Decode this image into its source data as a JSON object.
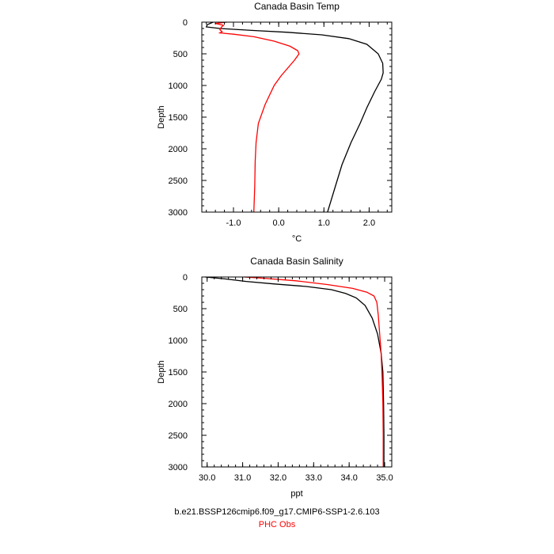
{
  "chart_data": [
    {
      "type": "line",
      "title": "Canada Basin Temp",
      "xlabel": "°C",
      "ylabel": "Depth",
      "xlim": [
        -1.7,
        2.5
      ],
      "ylim": [
        3000,
        0
      ],
      "x_ticks": [
        "-1.0",
        "0.0",
        "1.0",
        "2.0"
      ],
      "x_tick_values": [
        -1.0,
        0.0,
        1.0,
        2.0
      ],
      "y_ticks": [
        "0",
        "500",
        "1000",
        "1500",
        "2000",
        "2500",
        "3000"
      ],
      "y_tick_values": [
        0,
        500,
        1000,
        1500,
        2000,
        2500,
        3000
      ],
      "grid": false,
      "series": [
        {
          "color": "#000000",
          "points": [
            [
              -1.45,
              0
            ],
            [
              -1.58,
              40
            ],
            [
              -1.6,
              75
            ],
            [
              -1.3,
              100
            ],
            [
              -0.6,
              130
            ],
            [
              0.2,
              160
            ],
            [
              0.95,
              200
            ],
            [
              1.55,
              260
            ],
            [
              1.95,
              350
            ],
            [
              2.2,
              500
            ],
            [
              2.3,
              650
            ],
            [
              2.31,
              800
            ],
            [
              2.27,
              900
            ],
            [
              2.12,
              1100
            ],
            [
              1.95,
              1350
            ],
            [
              1.8,
              1600
            ],
            [
              1.6,
              1900
            ],
            [
              1.4,
              2250
            ],
            [
              1.25,
              2600
            ],
            [
              1.08,
              3000
            ]
          ]
        },
        {
          "color": "#ff0000",
          "points": [
            [
              -1.15,
              0
            ],
            [
              -1.4,
              20
            ],
            [
              -1.22,
              50
            ],
            [
              -1.27,
              80
            ],
            [
              -1.3,
              120
            ],
            [
              -1.25,
              150
            ],
            [
              -1.3,
              170
            ],
            [
              -1.0,
              190
            ],
            [
              -0.55,
              230
            ],
            [
              -0.1,
              300
            ],
            [
              0.25,
              380
            ],
            [
              0.42,
              450
            ],
            [
              0.45,
              500
            ],
            [
              0.35,
              600
            ],
            [
              0.05,
              850
            ],
            [
              -0.1,
              1000
            ],
            [
              -0.3,
              1300
            ],
            [
              -0.45,
              1600
            ],
            [
              -0.5,
              1900
            ],
            [
              -0.52,
              2200
            ],
            [
              -0.53,
              2600
            ],
            [
              -0.55,
              3000
            ]
          ]
        }
      ]
    },
    {
      "type": "line",
      "title": "Canada Basin Salinity",
      "xlabel": "ppt",
      "ylabel": "Depth",
      "xlim": [
        29.85,
        35.2
      ],
      "ylim": [
        3000,
        0
      ],
      "x_ticks": [
        "30.0",
        "31.0",
        "32.0",
        "33.0",
        "34.0",
        "35.0"
      ],
      "x_tick_values": [
        30.0,
        31.0,
        32.0,
        33.0,
        34.0,
        35.0
      ],
      "y_ticks": [
        "0",
        "500",
        "1000",
        "1500",
        "2000",
        "2500",
        "3000"
      ],
      "y_tick_values": [
        0,
        500,
        1000,
        1500,
        2000,
        2500,
        3000
      ],
      "grid": false,
      "series": [
        {
          "color": "#000000",
          "points": [
            [
              29.95,
              0
            ],
            [
              30.5,
              30
            ],
            [
              31.1,
              70
            ],
            [
              31.9,
              110
            ],
            [
              32.8,
              150
            ],
            [
              33.5,
              200
            ],
            [
              33.9,
              260
            ],
            [
              34.2,
              330
            ],
            [
              34.45,
              450
            ],
            [
              34.65,
              650
            ],
            [
              34.8,
              900
            ],
            [
              34.9,
              1200
            ],
            [
              34.95,
              1500
            ],
            [
              34.97,
              2000
            ],
            [
              34.98,
              2500
            ],
            [
              34.98,
              3000
            ]
          ]
        },
        {
          "color": "#ff0000",
          "points": [
            [
              31.05,
              0
            ],
            [
              31.6,
              20
            ],
            [
              32.5,
              60
            ],
            [
              33.4,
              120
            ],
            [
              34.1,
              180
            ],
            [
              34.5,
              240
            ],
            [
              34.7,
              300
            ],
            [
              34.78,
              400
            ],
            [
              34.82,
              600
            ],
            [
              34.86,
              900
            ],
            [
              34.9,
              1200
            ],
            [
              34.93,
              1600
            ],
            [
              34.95,
              2000
            ],
            [
              34.96,
              2500
            ],
            [
              34.96,
              3000
            ]
          ]
        }
      ]
    }
  ],
  "captions": {
    "model": "b.e21.BSSP126cmip6.f09_g17.CMIP6-SSP1-2.6.103",
    "obs": "PHC Obs",
    "model_color": "#000000",
    "obs_color": "#ff0000"
  }
}
